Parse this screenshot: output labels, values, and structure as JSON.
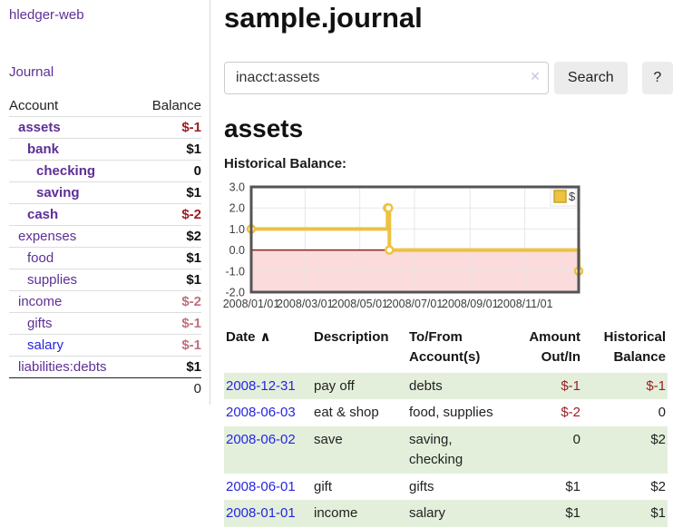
{
  "app": {
    "brand": "hledger-web"
  },
  "colors": {
    "link_purple": "#5e2f96",
    "link_blue": "#2626e0",
    "negative_strong": "#9c1d22",
    "negative_muted": "#bf707c",
    "row_shade_green": "#e3efdb",
    "chart_line_gold": "#edc240",
    "chart_negative_region": "#fbdbdb",
    "chart_zero_line": "#8e1f1f",
    "chart_border": "#545454"
  },
  "sidebar": {
    "nav": {
      "journal_label": "Journal"
    },
    "accounts_table": {
      "headers": {
        "account": "Account",
        "balance": "Balance"
      },
      "rows": [
        {
          "name": "assets",
          "depth": 1,
          "bold": true,
          "balance": "$-1",
          "negative": true
        },
        {
          "name": "bank",
          "depth": 2,
          "bold": true,
          "balance": "$1"
        },
        {
          "name": "checking",
          "depth": 3,
          "bold": true,
          "balance": "0"
        },
        {
          "name": "saving",
          "depth": 3,
          "bold": true,
          "balance": "$1"
        },
        {
          "name": "cash",
          "depth": 2,
          "bold": true,
          "balance": "$-2",
          "negative": true
        },
        {
          "name": "expenses",
          "depth": 1,
          "balance": "$2"
        },
        {
          "name": "food",
          "depth": 2,
          "balance": "$1"
        },
        {
          "name": "supplies",
          "depth": 2,
          "balance": "$1"
        },
        {
          "name": "income",
          "depth": 1,
          "balance": "$-2",
          "negative": true,
          "muted": true
        },
        {
          "name": "gifts",
          "depth": 2,
          "balance": "$-1",
          "negative": true,
          "muted": true
        },
        {
          "name": "salary",
          "depth": 2,
          "blue": true,
          "balance": "$-1",
          "negative": true,
          "muted": true
        },
        {
          "name": "liabilities:debts",
          "depth": 1,
          "balance": "$1"
        }
      ],
      "total": "0"
    }
  },
  "header": {
    "title": "sample.journal"
  },
  "search": {
    "value": "inacct:assets",
    "clear_icon": "✕",
    "search_button": "Search",
    "help_button": "?"
  },
  "account_page": {
    "title": "assets",
    "chart_label": "Historical Balance:"
  },
  "chart_data": {
    "type": "line",
    "step": true,
    "title": "Historical Balance:",
    "series": [
      {
        "name": "$",
        "color": "#edc240",
        "points": [
          [
            "2008-01-01",
            1
          ],
          [
            "2008-06-01",
            2
          ],
          [
            "2008-06-02",
            2
          ],
          [
            "2008-06-03",
            0
          ],
          [
            "2008-12-31",
            -1
          ]
        ]
      }
    ],
    "xlim": [
      "2008-01-01",
      "2008-12-31"
    ],
    "ylim": [
      -2,
      3
    ],
    "yticks": [
      3.0,
      2.0,
      1.0,
      0.0,
      -1.0,
      -2.0
    ],
    "xticks": [
      {
        "date": "2008-01-01",
        "label": "2008/01/01"
      },
      {
        "date": "2008-03-01",
        "label": "2008/03/01"
      },
      {
        "date": "2008-05-01",
        "label": "2008/05/01"
      },
      {
        "date": "2008-07-01",
        "label": "2008/07/01"
      },
      {
        "date": "2008-09-01",
        "label": "2008/09/01"
      },
      {
        "date": "2008-11-01",
        "label": "2008/11/01"
      }
    ],
    "grid": true,
    "legend_position": "top-right",
    "negative_region_fill": "#fbdbdb",
    "zero_line_color": "#8e1f1f",
    "plot_border_color": "#545454",
    "grid_color": "#e7e7e7"
  },
  "register": {
    "sort_arrow": "∧",
    "columns": [
      {
        "label": "Date",
        "align": "left"
      },
      {
        "label": "Description",
        "align": "left"
      },
      {
        "label": "To/From Account(s)",
        "align": "left"
      },
      {
        "label": "Amount Out/In",
        "align": "right"
      },
      {
        "label": "Historical Balance",
        "align": "right"
      }
    ],
    "rows": [
      {
        "date": "2008-12-31",
        "description": "pay off",
        "accounts": "debts",
        "amount": "$-1",
        "amount_negative": true,
        "balance": "$-1",
        "balance_negative": true,
        "shaded": true
      },
      {
        "date": "2008-06-03",
        "description": "eat & shop",
        "accounts": "food, supplies",
        "amount": "$-2",
        "amount_negative": true,
        "balance": "0",
        "balance_negative": false,
        "shaded": false
      },
      {
        "date": "2008-06-02",
        "description": "save",
        "accounts": "saving, checking",
        "amount": "0",
        "amount_negative": false,
        "balance": "$2",
        "balance_negative": false,
        "shaded": true
      },
      {
        "date": "2008-06-01",
        "description": "gift",
        "accounts": "gifts",
        "amount": "$1",
        "amount_negative": false,
        "balance": "$2",
        "balance_negative": false,
        "shaded": false
      },
      {
        "date": "2008-01-01",
        "description": "income",
        "accounts": "salary",
        "amount": "$1",
        "amount_negative": false,
        "balance": "$1",
        "balance_negative": false,
        "shaded": true
      }
    ]
  }
}
